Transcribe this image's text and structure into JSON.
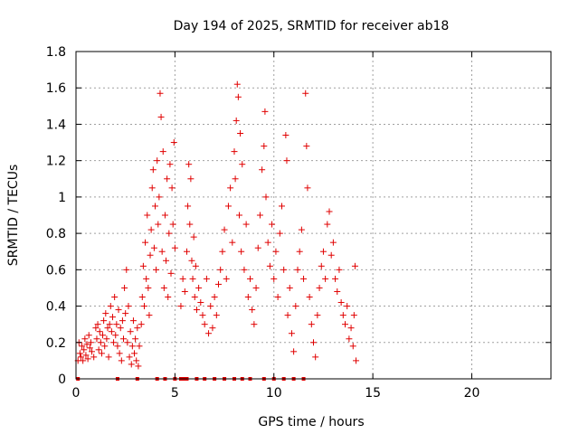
{
  "chart_data": {
    "type": "scatter",
    "title": "Day 194 of 2025, SRMTID for receiver ab18",
    "xlabel": "GPS time / hours",
    "ylabel": "SRMTID / TECUs",
    "xlim": [
      0,
      24
    ],
    "ylim": [
      0,
      1.8
    ],
    "xticks": [
      0,
      5,
      10,
      15,
      20
    ],
    "xtick_labels": [
      "0",
      "5",
      "10",
      "15",
      "20"
    ],
    "yticks": [
      0,
      0.2,
      0.4,
      0.6,
      0.8,
      1.0,
      1.2,
      1.4,
      1.6,
      1.8
    ],
    "ytick_labels": [
      "0",
      "0.2",
      "0.4",
      "0.6",
      "0.8",
      "1",
      "1.2",
      "1.4",
      "1.6",
      "1.8"
    ],
    "grid": true,
    "marker_color": "#e00000",
    "series": [
      {
        "name": "SRMTID",
        "marker": "+",
        "points": [
          [
            0.1,
            0.1
          ],
          [
            0.15,
            0.2
          ],
          [
            0.2,
            0.14
          ],
          [
            0.25,
            0.12
          ],
          [
            0.3,
            0.18
          ],
          [
            0.35,
            0.1
          ],
          [
            0.4,
            0.16
          ],
          [
            0.45,
            0.22
          ],
          [
            0.5,
            0.13
          ],
          [
            0.55,
            0.19
          ],
          [
            0.6,
            0.11
          ],
          [
            0.65,
            0.24
          ],
          [
            0.7,
            0.17
          ],
          [
            0.75,
            0.2
          ],
          [
            0.8,
            0.15
          ],
          [
            0.9,
            0.12
          ],
          [
            1.0,
            0.28
          ],
          [
            1.05,
            0.22
          ],
          [
            1.1,
            0.3
          ],
          [
            1.15,
            0.16
          ],
          [
            1.2,
            0.26
          ],
          [
            1.25,
            0.2
          ],
          [
            1.3,
            0.14
          ],
          [
            1.35,
            0.24
          ],
          [
            1.4,
            0.32
          ],
          [
            1.45,
            0.18
          ],
          [
            1.5,
            0.36
          ],
          [
            1.55,
            0.22
          ],
          [
            1.6,
            0.28
          ],
          [
            1.65,
            0.12
          ],
          [
            1.7,
            0.3
          ],
          [
            1.75,
            0.4
          ],
          [
            1.8,
            0.26
          ],
          [
            1.85,
            0.34
          ],
          [
            1.9,
            0.2
          ],
          [
            1.95,
            0.45
          ],
          [
            2.0,
            0.24
          ],
          [
            2.05,
            0.3
          ],
          [
            2.1,
            0.18
          ],
          [
            2.15,
            0.38
          ],
          [
            2.2,
            0.14
          ],
          [
            2.25,
            0.28
          ],
          [
            2.3,
            0.1
          ],
          [
            2.35,
            0.32
          ],
          [
            2.4,
            0.22
          ],
          [
            2.45,
            0.5
          ],
          [
            2.5,
            0.36
          ],
          [
            2.55,
            0.6
          ],
          [
            2.6,
            0.2
          ],
          [
            2.65,
            0.4
          ],
          [
            2.7,
            0.12
          ],
          [
            2.75,
            0.26
          ],
          [
            2.8,
            0.08
          ],
          [
            2.85,
            0.18
          ],
          [
            2.9,
            0.32
          ],
          [
            2.95,
            0.14
          ],
          [
            3.0,
            0.22
          ],
          [
            3.05,
            0.1
          ],
          [
            3.1,
            0.28
          ],
          [
            3.15,
            0.07
          ],
          [
            3.2,
            0.18
          ],
          [
            3.3,
            0.3
          ],
          [
            3.35,
            0.45
          ],
          [
            3.4,
            0.62
          ],
          [
            3.45,
            0.4
          ],
          [
            3.5,
            0.75
          ],
          [
            3.55,
            0.55
          ],
          [
            3.6,
            0.9
          ],
          [
            3.65,
            0.5
          ],
          [
            3.7,
            0.35
          ],
          [
            3.75,
            0.68
          ],
          [
            3.8,
            0.82
          ],
          [
            3.85,
            1.05
          ],
          [
            3.9,
            1.15
          ],
          [
            3.95,
            0.72
          ],
          [
            4.0,
            0.95
          ],
          [
            4.05,
            0.6
          ],
          [
            4.1,
            1.2
          ],
          [
            4.15,
            0.85
          ],
          [
            4.2,
            1.0
          ],
          [
            4.25,
            1.57
          ],
          [
            4.3,
            1.44
          ],
          [
            4.35,
            0.7
          ],
          [
            4.4,
            1.25
          ],
          [
            4.45,
            0.5
          ],
          [
            4.5,
            0.9
          ],
          [
            4.55,
            0.65
          ],
          [
            4.6,
            1.1
          ],
          [
            4.65,
            0.45
          ],
          [
            4.7,
            0.8
          ],
          [
            4.75,
            1.18
          ],
          [
            4.8,
            0.58
          ],
          [
            4.85,
            1.05
          ],
          [
            4.9,
            0.85
          ],
          [
            4.95,
            1.3
          ],
          [
            5.0,
            0.72
          ],
          [
            5.3,
            0.4
          ],
          [
            5.4,
            0.55
          ],
          [
            5.5,
            0.48
          ],
          [
            5.6,
            0.7
          ],
          [
            5.65,
            0.95
          ],
          [
            5.7,
            1.18
          ],
          [
            5.75,
            0.85
          ],
          [
            5.8,
            1.1
          ],
          [
            5.85,
            0.65
          ],
          [
            5.9,
            0.55
          ],
          [
            5.95,
            0.78
          ],
          [
            6.0,
            0.45
          ],
          [
            6.05,
            0.62
          ],
          [
            6.1,
            0.38
          ],
          [
            6.2,
            0.5
          ],
          [
            6.3,
            0.42
          ],
          [
            6.4,
            0.35
          ],
          [
            6.5,
            0.3
          ],
          [
            6.6,
            0.55
          ],
          [
            6.7,
            0.25
          ],
          [
            6.8,
            0.4
          ],
          [
            6.9,
            0.28
          ],
          [
            7.0,
            0.45
          ],
          [
            7.1,
            0.35
          ],
          [
            7.2,
            0.52
          ],
          [
            7.3,
            0.6
          ],
          [
            7.4,
            0.7
          ],
          [
            7.5,
            0.82
          ],
          [
            7.6,
            0.55
          ],
          [
            7.7,
            0.95
          ],
          [
            7.8,
            1.05
          ],
          [
            7.9,
            0.75
          ],
          [
            8.0,
            1.25
          ],
          [
            8.05,
            1.1
          ],
          [
            8.1,
            1.42
          ],
          [
            8.15,
            1.62
          ],
          [
            8.2,
            1.55
          ],
          [
            8.25,
            0.9
          ],
          [
            8.3,
            1.35
          ],
          [
            8.35,
            0.7
          ],
          [
            8.4,
            1.18
          ],
          [
            8.5,
            0.6
          ],
          [
            8.6,
            0.85
          ],
          [
            8.7,
            0.45
          ],
          [
            8.8,
            0.55
          ],
          [
            8.9,
            0.38
          ],
          [
            9.0,
            0.3
          ],
          [
            9.1,
            0.5
          ],
          [
            9.2,
            0.72
          ],
          [
            9.3,
            0.9
          ],
          [
            9.4,
            1.15
          ],
          [
            9.5,
            1.28
          ],
          [
            9.55,
            1.47
          ],
          [
            9.6,
            1.0
          ],
          [
            9.7,
            0.75
          ],
          [
            9.8,
            0.62
          ],
          [
            9.9,
            0.85
          ],
          [
            10.0,
            0.55
          ],
          [
            10.1,
            0.7
          ],
          [
            10.2,
            0.45
          ],
          [
            10.3,
            0.8
          ],
          [
            10.4,
            0.95
          ],
          [
            10.5,
            0.6
          ],
          [
            10.6,
            1.34
          ],
          [
            10.65,
            1.2
          ],
          [
            10.7,
            0.35
          ],
          [
            10.8,
            0.5
          ],
          [
            10.9,
            0.25
          ],
          [
            11.0,
            0.15
          ],
          [
            11.1,
            0.4
          ],
          [
            11.2,
            0.6
          ],
          [
            11.3,
            0.7
          ],
          [
            11.4,
            0.82
          ],
          [
            11.5,
            0.55
          ],
          [
            11.6,
            1.57
          ],
          [
            11.65,
            1.28
          ],
          [
            11.7,
            1.05
          ],
          [
            11.8,
            0.45
          ],
          [
            11.9,
            0.3
          ],
          [
            12.0,
            0.2
          ],
          [
            12.1,
            0.12
          ],
          [
            12.2,
            0.35
          ],
          [
            12.3,
            0.5
          ],
          [
            12.4,
            0.62
          ],
          [
            12.5,
            0.7
          ],
          [
            12.6,
            0.55
          ],
          [
            12.7,
            0.85
          ],
          [
            12.8,
            0.92
          ],
          [
            12.9,
            0.68
          ],
          [
            13.0,
            0.75
          ],
          [
            13.1,
            0.55
          ],
          [
            13.2,
            0.48
          ],
          [
            13.3,
            0.6
          ],
          [
            13.4,
            0.42
          ],
          [
            13.5,
            0.35
          ],
          [
            13.6,
            0.3
          ],
          [
            13.7,
            0.4
          ],
          [
            13.8,
            0.22
          ],
          [
            13.9,
            0.28
          ],
          [
            14.0,
            0.18
          ],
          [
            14.05,
            0.35
          ],
          [
            14.1,
            0.62
          ],
          [
            14.15,
            0.1
          ]
        ]
      }
    ],
    "zero_markers_x": [
      0.1,
      2.1,
      3.1,
      4.1,
      4.5,
      5.0,
      5.3,
      5.4,
      5.5,
      5.6,
      6.1,
      6.5,
      7.0,
      7.5,
      8.0,
      8.4,
      8.8,
      9.5,
      10.0,
      10.5,
      11.0,
      11.5
    ]
  }
}
